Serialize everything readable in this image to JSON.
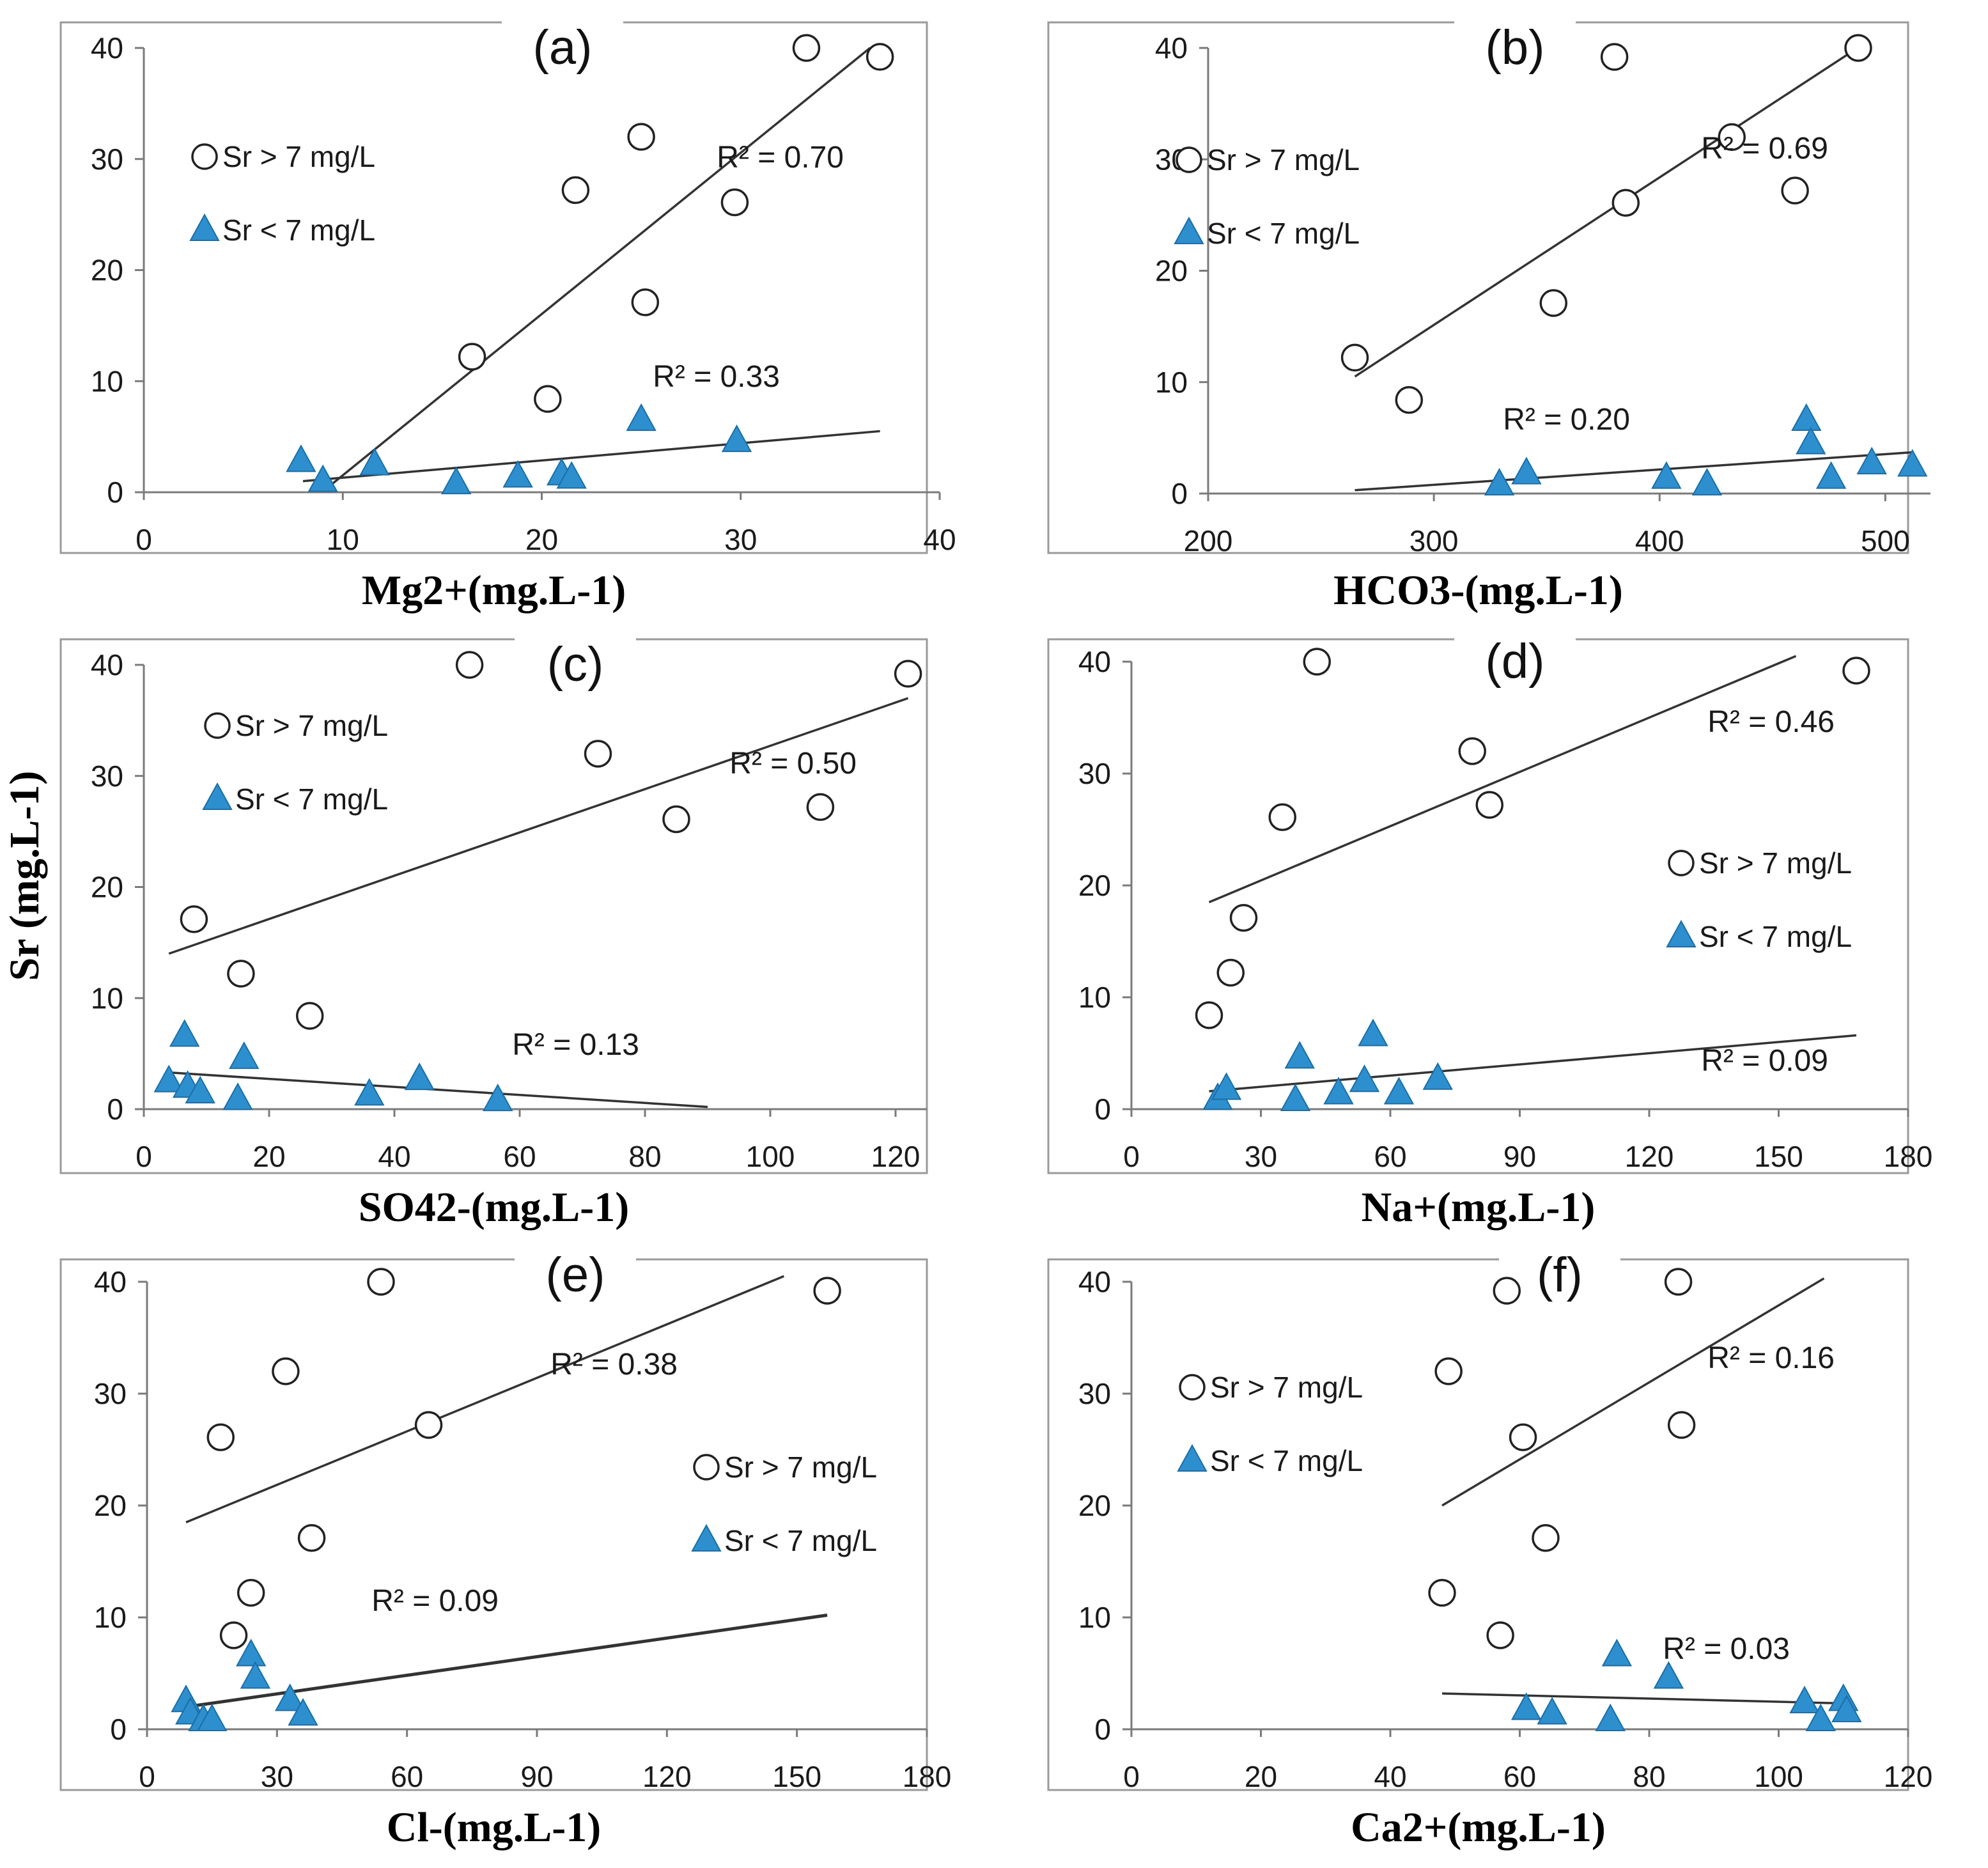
{
  "figure": {
    "ylabel": "Sr (mg.L-1)"
  },
  "chart_data": [
    {
      "panel_label": "(a)",
      "type": "scatter",
      "xlabel": "Mg2+(mg.L-1)",
      "xlim": [
        0,
        40
      ],
      "ylim": [
        0,
        40
      ],
      "xticks": [
        "0",
        "10",
        "20",
        "30",
        "40"
      ],
      "yticks": [
        "0",
        "10",
        "20",
        "30",
        "40"
      ],
      "legend_placement": "top-left",
      "series": [
        {
          "name": "Sr > 7  mg/L",
          "marker": "circle",
          "points": [
            [
              16.5,
              12.2
            ],
            [
              20.3,
              8.4
            ],
            [
              21.7,
              27.2
            ],
            [
              25,
              32
            ],
            [
              25.2,
              17.1
            ],
            [
              29.7,
              26.1
            ],
            [
              33.3,
              40
            ],
            [
              37,
              39.2
            ]
          ],
          "trend": {
            "x": [
              9.5,
              36.5
            ],
            "y": [
              0.8,
              40
            ]
          },
          "r2": "R² = 0.70"
        },
        {
          "name": "Sr < 7 mg/L",
          "marker": "triangle",
          "points": [
            [
              7.9,
              2.8
            ],
            [
              9,
              1
            ],
            [
              11.6,
              2.5
            ],
            [
              15.7,
              0.8
            ],
            [
              18.8,
              1.4
            ],
            [
              21,
              1.6
            ],
            [
              21.5,
              1.3
            ],
            [
              25,
              6.5
            ],
            [
              29.8,
              4.6
            ]
          ],
          "trend": {
            "x": [
              8,
              37
            ],
            "y": [
              1,
              5.5
            ]
          },
          "r2": "R² = 0.33"
        }
      ]
    },
    {
      "panel_label": "(b)",
      "type": "scatter",
      "xlabel": "HCO3-(mg.L-1)",
      "xlim": [
        200,
        520
      ],
      "ylim": [
        0,
        40
      ],
      "xticks": [
        "200",
        "300",
        "400",
        "500"
      ],
      "yticks": [
        "0",
        "10",
        "20",
        "30",
        "40"
      ],
      "legend_placement": "top-left",
      "series": [
        {
          "name": "Sr > 7  mg/L",
          "marker": "circle",
          "points": [
            [
              265,
              12.2
            ],
            [
              289,
              8.4
            ],
            [
              353,
              17.1
            ],
            [
              385,
              26.1
            ],
            [
              380,
              39.2
            ],
            [
              432,
              32
            ],
            [
              460,
              27.2
            ],
            [
              488,
              40
            ]
          ],
          "trend": {
            "x": [
              265,
              490
            ],
            "y": [
              10.5,
              40.3
            ]
          },
          "r2": "R² = 0.69"
        },
        {
          "name": "Sr < 7 mg/L",
          "marker": "triangle",
          "points": [
            [
              329,
              0.8
            ],
            [
              341,
              1.8
            ],
            [
              403,
              1.4
            ],
            [
              421,
              0.8
            ],
            [
              465,
              6.6
            ],
            [
              467,
              4.5
            ],
            [
              476,
              1.4
            ],
            [
              494,
              2.7
            ],
            [
              512,
              2.5
            ]
          ],
          "trend": {
            "x": [
              265,
              512
            ],
            "y": [
              0.3,
              3.7
            ]
          },
          "r2": "R² = 0.20"
        }
      ]
    },
    {
      "panel_label": "(c)",
      "type": "scatter",
      "xlabel": "SO42-(mg.L-1)",
      "xlim": [
        0,
        125
      ],
      "ylim": [
        0,
        40
      ],
      "xticks": [
        "0",
        "20",
        "40",
        "60",
        "80",
        "100",
        "120"
      ],
      "yticks": [
        "0",
        "10",
        "20",
        "30",
        "40"
      ],
      "legend_placement": "top-left",
      "series": [
        {
          "name": "Sr > 7  mg/L",
          "marker": "circle",
          "points": [
            [
              8,
              17.1
            ],
            [
              15.5,
              12.2
            ],
            [
              26.5,
              8.4
            ],
            [
              52,
              40
            ],
            [
              72.5,
              32
            ],
            [
              85,
              26.1
            ],
            [
              108,
              27.2
            ],
            [
              122,
              39.2
            ]
          ],
          "trend": {
            "x": [
              4,
              122
            ],
            "y": [
              14,
              37
            ]
          },
          "r2": "R² = 0.50"
        },
        {
          "name": "Sr < 7 mg/L",
          "marker": "triangle",
          "points": [
            [
              4,
              2.5
            ],
            [
              6.5,
              6.6
            ],
            [
              7,
              2
            ],
            [
              9,
              1.5
            ],
            [
              15,
              0.9
            ],
            [
              16,
              4.6
            ],
            [
              36,
              1.3
            ],
            [
              44,
              2.7
            ],
            [
              56.5,
              0.8
            ]
          ],
          "trend": {
            "x": [
              4,
              90
            ],
            "y": [
              3.3,
              0.2
            ]
          },
          "r2": "R² = 0.13"
        }
      ]
    },
    {
      "panel_label": "(d)",
      "type": "scatter",
      "xlabel": "Na+(mg.L-1)",
      "xlim": [
        0,
        180
      ],
      "ylim": [
        0,
        40
      ],
      "xticks": [
        "0",
        "30",
        "60",
        "90",
        "120",
        "150",
        "180"
      ],
      "yticks": [
        "0",
        "10",
        "20",
        "30",
        "40"
      ],
      "legend_placement": "right",
      "series": [
        {
          "name": "Sr > 7  mg/L",
          "marker": "circle",
          "points": [
            [
              18,
              8.4
            ],
            [
              23,
              12.2
            ],
            [
              26,
              17.1
            ],
            [
              35,
              26.1
            ],
            [
              43,
              40
            ],
            [
              79,
              32
            ],
            [
              83,
              27.2
            ],
            [
              168,
              39.2
            ]
          ],
          "trend": {
            "x": [
              18,
              154
            ],
            "y": [
              18.5,
              40.5
            ]
          },
          "r2": "R² = 0.46"
        },
        {
          "name": "Sr < 7 mg/L",
          "marker": "triangle",
          "points": [
            [
              20,
              0.9
            ],
            [
              22,
              1.8
            ],
            [
              38,
              0.8
            ],
            [
              39,
              4.6
            ],
            [
              48,
              1.4
            ],
            [
              54,
              2.5
            ],
            [
              56,
              6.6
            ],
            [
              62,
              1.4
            ],
            [
              71,
              2.7
            ]
          ],
          "trend": {
            "x": [
              18,
              168
            ],
            "y": [
              1.6,
              6.6
            ]
          },
          "r2": "R² = 0.09"
        }
      ]
    },
    {
      "panel_label": "(e)",
      "type": "scatter",
      "xlabel": "Cl-(mg.L-1)",
      "xlim": [
        0,
        180
      ],
      "ylim": [
        0,
        40
      ],
      "xticks": [
        "0",
        "30",
        "60",
        "90",
        "120",
        "150",
        "180"
      ],
      "yticks": [
        "0",
        "10",
        "20",
        "30",
        "40"
      ],
      "legend_placement": "right",
      "series": [
        {
          "name": "Sr > 7  mg/L",
          "marker": "circle",
          "points": [
            [
              20,
              8.4
            ],
            [
              24,
              12.2
            ],
            [
              17,
              26.1
            ],
            [
              32,
              32
            ],
            [
              38,
              17.1
            ],
            [
              54,
              40
            ],
            [
              65,
              27.2
            ],
            [
              157,
              39.2
            ]
          ],
          "trend": {
            "x": [
              9,
              147
            ],
            "y": [
              18.5,
              40.5
            ]
          },
          "r2": "R² = 0.38"
        },
        {
          "name": "Sr < 7 mg/L",
          "marker": "triangle",
          "points": [
            [
              9,
              2.5
            ],
            [
              10,
              1.4
            ],
            [
              13,
              0.8
            ],
            [
              15,
              0.8
            ],
            [
              24,
              6.6
            ],
            [
              25,
              4.6
            ],
            [
              33,
              2.6
            ],
            [
              36,
              1.3
            ]
          ],
          "trend": {
            "x": [
              9,
              157
            ],
            "y": [
              2,
              10.2
            ]
          },
          "r2": "R² = 0.09"
        }
      ]
    },
    {
      "panel_label": "(f)",
      "type": "scatter",
      "xlabel": "Ca2+(mg.L-1)",
      "xlim": [
        0,
        120
      ],
      "ylim": [
        0,
        40
      ],
      "xticks": [
        "0",
        "20",
        "40",
        "60",
        "80",
        "100",
        "120"
      ],
      "yticks": [
        "0",
        "10",
        "20",
        "30",
        "40"
      ],
      "legend_placement": "top-left",
      "series": [
        {
          "name": "Sr > 7  mg/L",
          "marker": "circle",
          "points": [
            [
              48,
              12.2
            ],
            [
              57,
              8.4
            ],
            [
              49,
              32
            ],
            [
              58,
              39.2
            ],
            [
              60.5,
              26.1
            ],
            [
              64,
              17.1
            ],
            [
              84.5,
              40
            ],
            [
              85,
              27.2
            ]
          ],
          "trend": {
            "x": [
              48,
              107
            ],
            "y": [
              20,
              40.3
            ]
          },
          "r2": "R² = 0.16"
        },
        {
          "name": "Sr < 7 mg/L",
          "marker": "triangle",
          "points": [
            [
              61,
              1.8
            ],
            [
              65,
              1.4
            ],
            [
              74,
              0.8
            ],
            [
              75,
              6.6
            ],
            [
              83,
              4.6
            ],
            [
              104,
              2.4
            ],
            [
              106.5,
              0.8
            ],
            [
              110,
              2.6
            ],
            [
              110.5,
              1.6
            ]
          ],
          "trend": {
            "x": [
              48,
              111
            ],
            "y": [
              3.2,
              2.3
            ]
          },
          "r2": "R² = 0.03"
        }
      ]
    }
  ]
}
